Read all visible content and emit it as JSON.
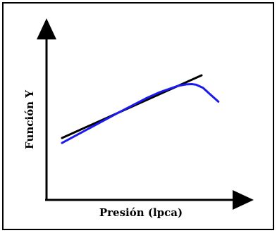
{
  "chart_data": {
    "type": "line",
    "title": "",
    "xlabel": "Presión (lpca)",
    "ylabel": "Función Y",
    "grid": false,
    "legend": "none",
    "axis_color": "#000000",
    "frame_color": "#000000",
    "series": [
      {
        "color": "#000000",
        "x": [
          0,
          10
        ],
        "y": [
          0,
          10
        ]
      },
      {
        "color": "#1a1aee",
        "x": [
          0,
          2,
          4,
          6,
          7,
          8.3,
          8.9,
          9.3,
          9.6,
          10.1,
          10.6,
          11.2
        ],
        "y": [
          -0.8,
          1.6,
          4.0,
          6.3,
          7.3,
          8.3,
          8.55,
          8.6,
          8.5,
          8.0,
          7.0,
          5.8
        ]
      }
    ]
  }
}
